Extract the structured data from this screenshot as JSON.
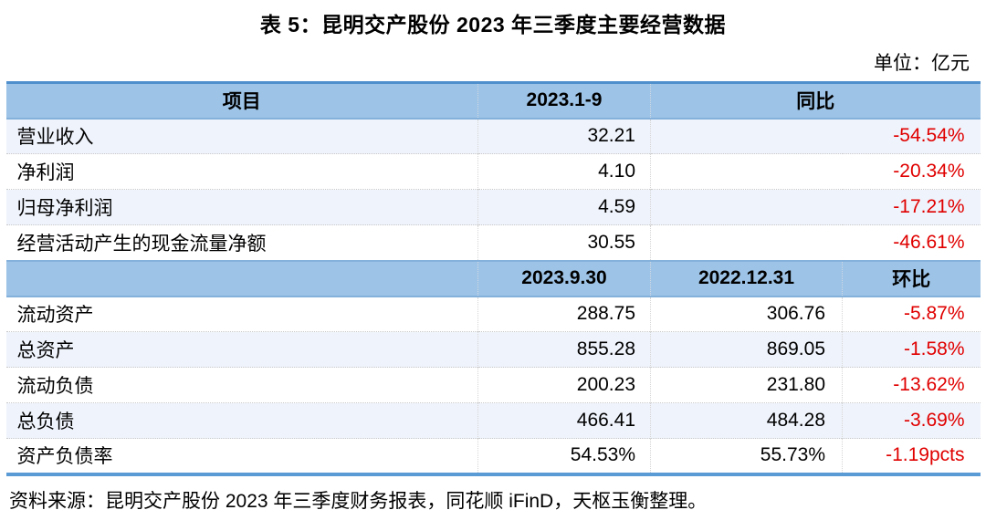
{
  "title": "表 5：昆明交产股份 2023 年三季度主要经营数据",
  "unit_note": "单位：亿元",
  "source_note": "资料来源：昆明交产股份 2023 年三季度财务报表，同花顺 iFinD，天枢玉衡整理。",
  "colors": {
    "header_bg": "#9DC3E6",
    "row_tint": "#EFF3FB",
    "table_top_border": "#4E8FCC",
    "table_bottom_border": "#5B9BD5",
    "negative_value": "#E00000"
  },
  "table": {
    "part1": {
      "headers": {
        "item": "项目",
        "period": "2023.1-9",
        "yoy": "同比"
      },
      "rows": [
        {
          "item": "营业收入",
          "value": "32.21",
          "yoy": "-54.54%"
        },
        {
          "item": "净利润",
          "value": "4.10",
          "yoy": "-20.34%"
        },
        {
          "item": "归母净利润",
          "value": "4.59",
          "yoy": "-17.21%"
        },
        {
          "item": "经营活动产生的现金流量净额",
          "value": "30.55",
          "yoy": "-46.61%"
        }
      ]
    },
    "part2": {
      "headers": {
        "item": "",
        "date1": "2023.9.30",
        "date2": "2022.12.31",
        "qoq": "环比"
      },
      "rows": [
        {
          "item": "流动资产",
          "v1": "288.75",
          "v2": "306.76",
          "qoq": "-5.87%"
        },
        {
          "item": "总资产",
          "v1": "855.28",
          "v2": "869.05",
          "qoq": "-1.58%"
        },
        {
          "item": "流动负债",
          "v1": "200.23",
          "v2": "231.80",
          "qoq": "-13.62%"
        },
        {
          "item": "总负债",
          "v1": "466.41",
          "v2": "484.28",
          "qoq": "-3.69%"
        },
        {
          "item": "资产负债率",
          "v1": "54.53%",
          "v2": "55.73%",
          "qoq": "-1.19pcts"
        }
      ]
    }
  }
}
